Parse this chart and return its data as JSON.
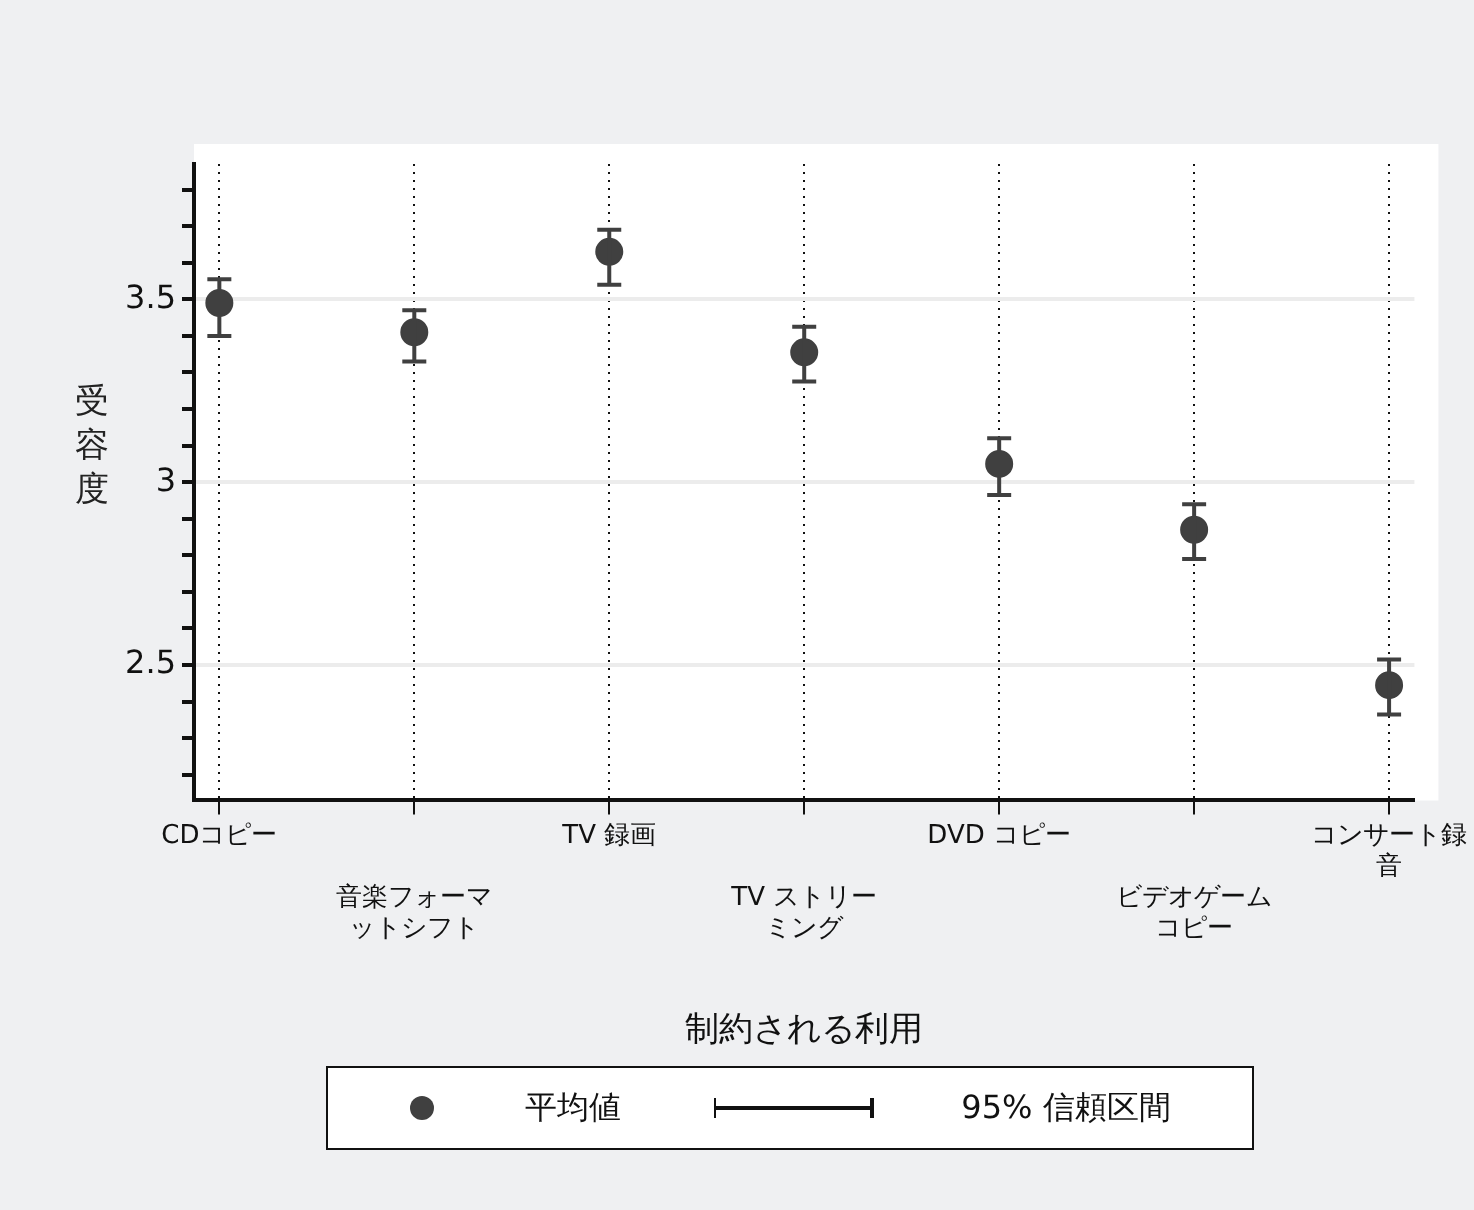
{
  "chart_data": {
    "type": "scatter",
    "xlabel": "制約される利用",
    "ylabel": "受容度",
    "categories": [
      "CDコピー",
      "音楽フォーマットシフト",
      "TV 録画",
      "TV ストリーミング",
      "DVD コピー",
      "ビデオゲームコピー",
      "コンサート録音"
    ],
    "series": [
      {
        "name": "平均値",
        "color": "#404040",
        "values": [
          3.49,
          3.41,
          3.63,
          3.355,
          3.05,
          2.87,
          2.445
        ],
        "errors": [
          [
            3.4,
            3.555
          ],
          [
            3.33,
            3.47
          ],
          [
            3.54,
            3.69
          ],
          [
            3.275,
            3.425
          ],
          [
            2.965,
            3.12
          ],
          [
            2.79,
            2.94
          ],
          [
            2.365,
            2.515
          ]
        ]
      }
    ],
    "ylim": [
      2.13,
      3.87
    ],
    "yticks": [
      {
        "value": 2.2,
        "label": null
      },
      {
        "value": 2.3,
        "label": null
      },
      {
        "value": 2.4,
        "label": null
      },
      2.5,
      {
        "value": 2.6,
        "label": null
      },
      {
        "value": 2.7,
        "label": null
      },
      {
        "value": 2.8,
        "label": null
      },
      {
        "value": 2.9,
        "label": null
      },
      3,
      {
        "value": 3.1,
        "label": null
      },
      {
        "value": 3.2,
        "label": null
      },
      {
        "value": 3.3,
        "label": null
      },
      {
        "value": 3.4,
        "label": null
      },
      3.5,
      {
        "value": 3.6,
        "label": null
      },
      {
        "value": 3.7,
        "label": null
      },
      {
        "value": 3.8,
        "label": null
      }
    ],
    "grid": true,
    "legend": "bottom",
    "marker": "circle",
    "annotations": [
      "95% 信頼区間"
    ]
  }
}
